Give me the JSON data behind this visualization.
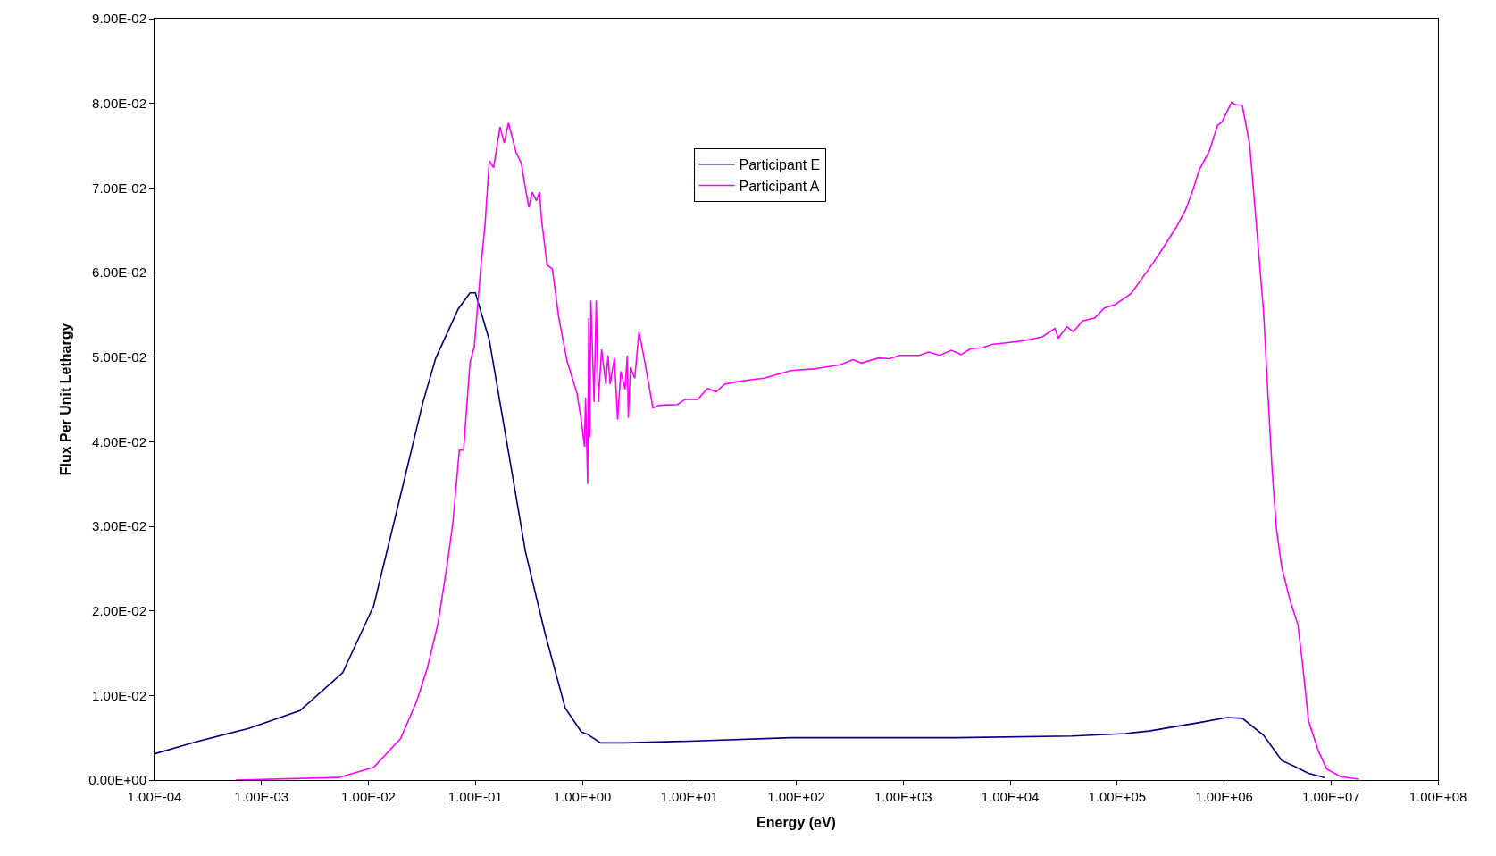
{
  "chart_data": {
    "type": "line",
    "xlabel": "Energy (eV)",
    "ylabel": "Flux Per Unit Lethargy",
    "log": "x",
    "grid": false,
    "legend": "top",
    "marker": "none",
    "line_style": "solid",
    "xlim": [
      0.0001,
      100000000.0
    ],
    "xticks": [
      {
        "value": 0.0001,
        "label": "1.00E-04"
      },
      {
        "value": 0.001,
        "label": "1.00E-03"
      },
      {
        "value": 0.01,
        "label": "1.00E-02"
      },
      {
        "value": 0.1,
        "label": "1.00E-01"
      },
      {
        "value": 1,
        "label": "1.00E+00"
      },
      {
        "value": 10,
        "label": "1.00E+01"
      },
      {
        "value": 100,
        "label": "1.00E+02"
      },
      {
        "value": 1000,
        "label": "1.00E+03"
      },
      {
        "value": 10000,
        "label": "1.00E+04"
      },
      {
        "value": 100000,
        "label": "1.00E+05"
      },
      {
        "value": 1000000,
        "label": "1.00E+06"
      },
      {
        "value": 10000000,
        "label": "1.00E+07"
      },
      {
        "value": 100000000,
        "label": "1.00E+08"
      }
    ],
    "ylim": [
      0,
      0.09
    ],
    "yticks": [
      {
        "value": 0,
        "label": "0.00E+00"
      },
      {
        "value": 0.01,
        "label": "1.00E-02"
      },
      {
        "value": 0.02,
        "label": "2.00E-02"
      },
      {
        "value": 0.03,
        "label": "3.00E-02"
      },
      {
        "value": 0.04,
        "label": "4.00E-02"
      },
      {
        "value": 0.05,
        "label": "5.00E-02"
      },
      {
        "value": 0.06,
        "label": "6.00E-02"
      },
      {
        "value": 0.07,
        "label": "7.00E-02"
      },
      {
        "value": 0.08,
        "label": "8.00E-02"
      },
      {
        "value": 0.09,
        "label": "9.00E-02"
      }
    ],
    "series": [
      {
        "name": "Participant E",
        "color": "#000080",
        "x": [
          0.0001,
          0.00024,
          0.000759,
          0.00229,
          0.00575,
          0.0112,
          0.02,
          0.0324,
          0.0427,
          0.0692,
          0.0891,
          0.1,
          0.135,
          0.2,
          0.295,
          0.447,
          0.692,
          0.977,
          1.12,
          1.48,
          2.51,
          10,
          89.1,
          3090,
          38000,
          120000,
          200000,
          589000,
          1070000,
          1480000,
          2340000,
          3470000,
          4570000,
          6170000,
          8710000
        ],
        "values": [
          0.0031,
          0.0045,
          0.0061,
          0.0082,
          0.0127,
          0.0206,
          0.0337,
          0.0447,
          0.0499,
          0.0557,
          0.0576,
          0.0576,
          0.052,
          0.0394,
          0.0269,
          0.0174,
          0.0085,
          0.0057,
          0.0054,
          0.0044,
          0.0044,
          0.0046,
          0.005,
          0.005,
          0.0052,
          0.0055,
          0.0058,
          0.0068,
          0.0074,
          0.0073,
          0.0053,
          0.0023,
          0.0016,
          0.0008,
          0.0003
        ]
      },
      {
        "name": "Participant A",
        "color": "#ff00ff",
        "x": [
          0.000575,
          0.00525,
          0.0112,
          0.02,
          0.0282,
          0.0355,
          0.0447,
          0.055,
          0.0617,
          0.0708,
          0.0776,
          0.0891,
          0.0977,
          0.112,
          0.123,
          0.135,
          0.148,
          0.17,
          0.186,
          0.204,
          0.24,
          0.269,
          0.295,
          0.316,
          0.339,
          0.372,
          0.398,
          0.417,
          0.468,
          0.525,
          0.603,
          0.724,
          0.794,
          0.891,
          0.977,
          1.047,
          1.072,
          1.122,
          1.148,
          1.175,
          1.202,
          1.288,
          1.349,
          1.413,
          1.514,
          1.66,
          1.738,
          1.82,
          1.995,
          2.138,
          2.291,
          2.512,
          2.63,
          2.692,
          2.818,
          3.09,
          3.388,
          3.715,
          4.571,
          5.248,
          7.762,
          9.12,
          12.02,
          14.79,
          17.78,
          21.38,
          28.18,
          36.31,
          50.12,
          89.13,
          144.5,
          257.0,
          338.8,
          407.4,
          588.8,
          741.3,
          933.3,
          1413,
          1738,
          2188,
          2818,
          3467,
          4266,
          5495,
          6761,
          12880,
          19950,
          26300,
          28180,
          33880,
          38900,
          47860,
          61660,
          75860,
          95500,
          134900,
          218800,
          269200,
          363100,
          436500,
          512900,
          588800,
          724400,
          871000,
          955000,
          1175000,
          1288000,
          1479000,
          1738000,
          1995000,
          2344000,
          2570000,
          2818000,
          3090000,
          3467000,
          4169000,
          4898000,
          5370000,
          6166000,
          7586000,
          9120000,
          12300000,
          18200000
        ],
        "values": [
          0,
          0.0003,
          0.0015,
          0.0049,
          0.0093,
          0.0132,
          0.0185,
          0.0258,
          0.0305,
          0.039,
          0.039,
          0.0494,
          0.0512,
          0.0604,
          0.0656,
          0.0732,
          0.0724,
          0.0772,
          0.0753,
          0.0777,
          0.0742,
          0.0729,
          0.0698,
          0.0677,
          0.0695,
          0.0685,
          0.0695,
          0.0661,
          0.0609,
          0.0604,
          0.0546,
          0.0494,
          0.0478,
          0.0457,
          0.0426,
          0.0394,
          0.0452,
          0.035,
          0.0546,
          0.0405,
          0.0567,
          0.0447,
          0.0567,
          0.0447,
          0.0509,
          0.0468,
          0.0502,
          0.0468,
          0.0499,
          0.0426,
          0.0483,
          0.0462,
          0.0502,
          0.0428,
          0.0488,
          0.0475,
          0.053,
          0.0504,
          0.044,
          0.0443,
          0.0444,
          0.045,
          0.045,
          0.0463,
          0.0459,
          0.0468,
          0.0471,
          0.0473,
          0.0475,
          0.0484,
          0.0486,
          0.0491,
          0.0497,
          0.0493,
          0.0499,
          0.0498,
          0.0502,
          0.0502,
          0.0506,
          0.0502,
          0.0508,
          0.0503,
          0.051,
          0.0511,
          0.0515,
          0.0519,
          0.0524,
          0.0534,
          0.0522,
          0.0536,
          0.053,
          0.0543,
          0.0546,
          0.0558,
          0.0562,
          0.0575,
          0.0612,
          0.0629,
          0.0655,
          0.0674,
          0.0698,
          0.0722,
          0.0743,
          0.0774,
          0.0778,
          0.0801,
          0.0798,
          0.0798,
          0.0751,
          0.066,
          0.0553,
          0.0457,
          0.0366,
          0.0297,
          0.0251,
          0.0211,
          0.0184,
          0.0142,
          0.007,
          0.0035,
          0.0013,
          0.0004,
          0.0001
        ]
      }
    ]
  }
}
